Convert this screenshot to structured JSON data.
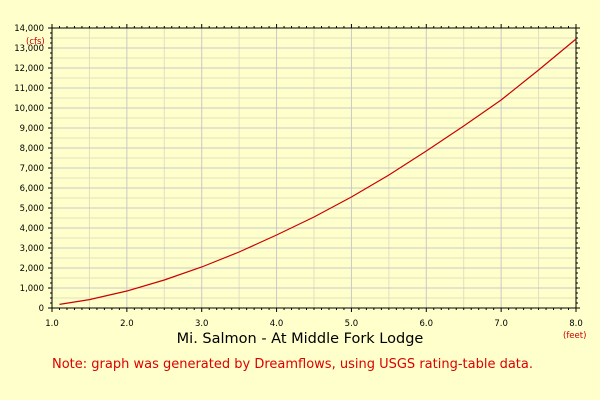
{
  "chart_data": {
    "type": "line",
    "title": "Mi. Salmon - At Middle Fork Lodge",
    "note": "Note: graph was generated by Dreamflows, using USGS rating-table data.",
    "xunit": "(feet)",
    "yunit": "(cfs)",
    "xlim": [
      1.0,
      8.0
    ],
    "ylim": [
      0,
      14000
    ],
    "x_ticks": [
      "1.0",
      "2.0",
      "3.0",
      "4.0",
      "5.0",
      "6.0",
      "7.0",
      "8.0"
    ],
    "y_ticks": [
      "0",
      "1,000",
      "2,000",
      "3,000",
      "4,000",
      "5,000",
      "6,000",
      "7,000",
      "8,000",
      "9,000",
      "10,000",
      "11,000",
      "12,000",
      "13,000",
      "14,000"
    ],
    "grid": true,
    "series": [
      {
        "color": "#cc0000",
        "points": [
          [
            1.1,
            180
          ],
          [
            1.5,
            420
          ],
          [
            2.0,
            850
          ],
          [
            2.5,
            1400
          ],
          [
            3.0,
            2050
          ],
          [
            3.5,
            2800
          ],
          [
            4.0,
            3650
          ],
          [
            4.5,
            4550
          ],
          [
            5.0,
            5550
          ],
          [
            5.5,
            6650
          ],
          [
            6.0,
            7850
          ],
          [
            6.5,
            9100
          ],
          [
            7.0,
            10400
          ],
          [
            7.5,
            11900
          ],
          [
            8.0,
            13450
          ]
        ]
      }
    ],
    "colors": {
      "background": "#ffffcc",
      "grid": "#c8c8c8",
      "axis": "#000000",
      "line": "#cc0000",
      "note": "#dd0000"
    }
  }
}
